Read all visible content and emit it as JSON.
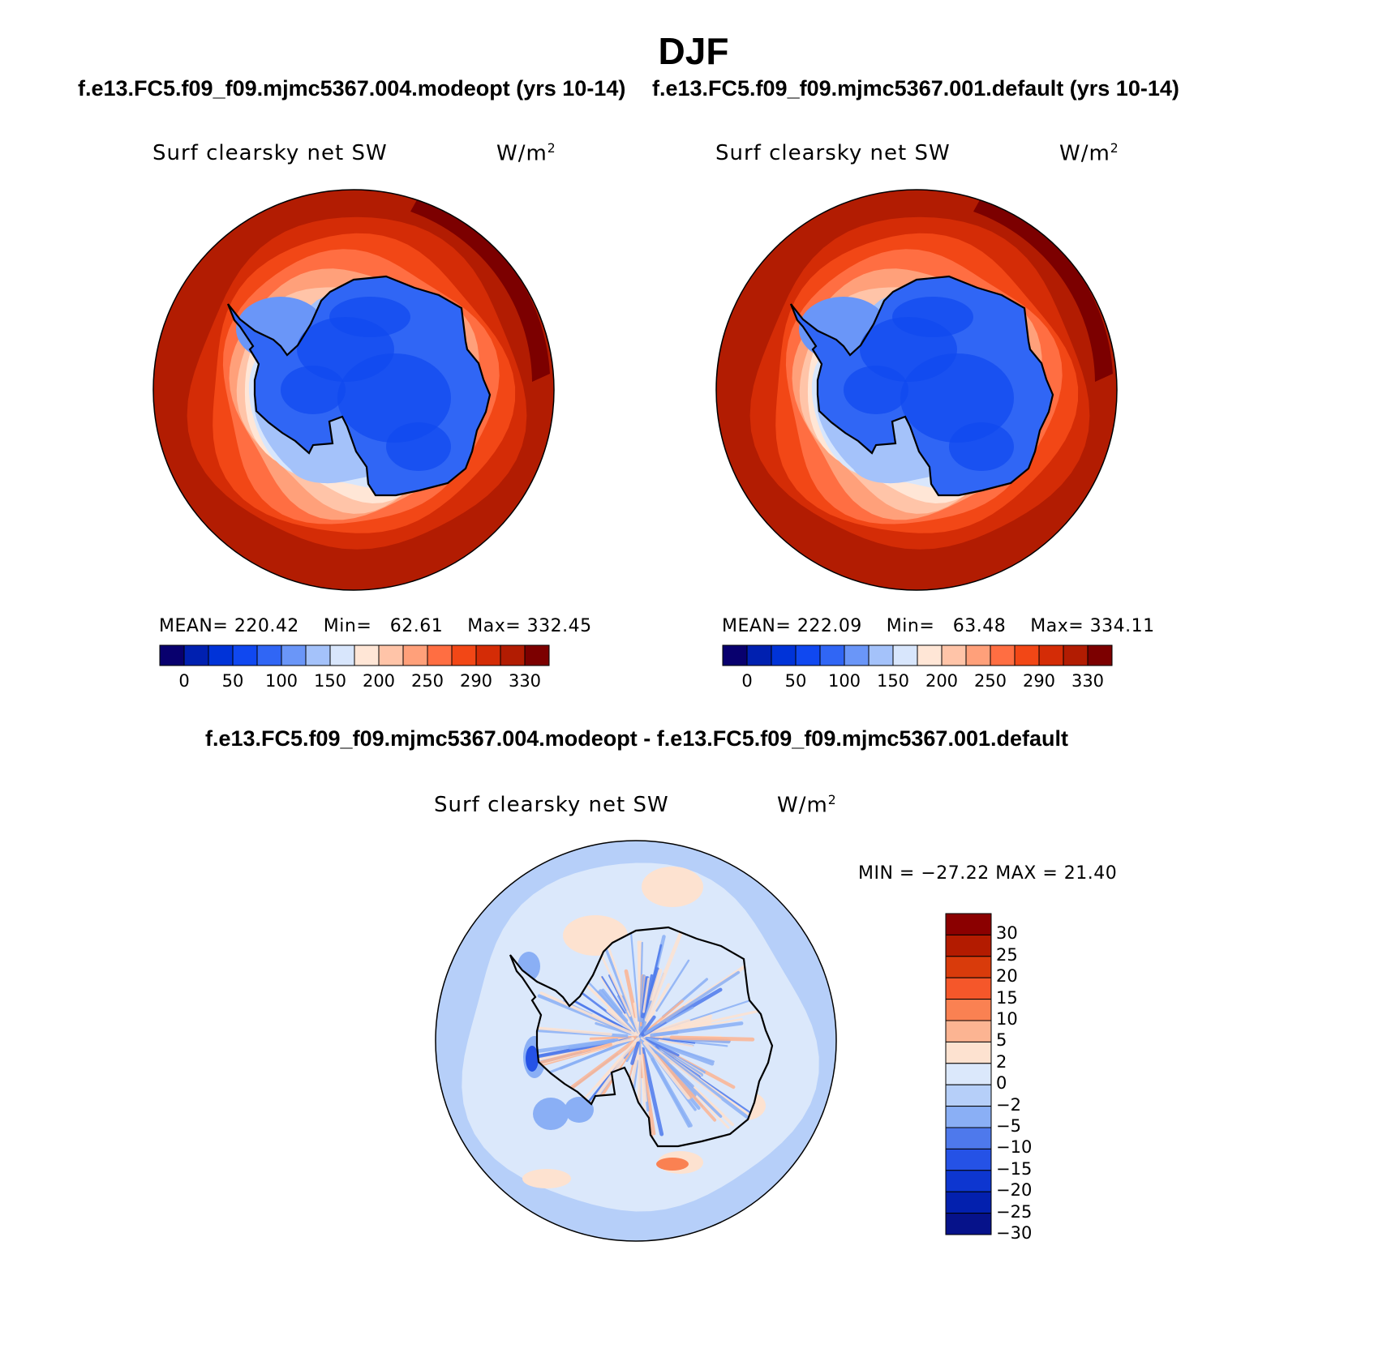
{
  "page": {
    "title": "DJF",
    "subtitle_left": "f.e13.FC5.f09_f09.mjmc5367.004.modeopt (yrs 10-14)",
    "subtitle_right": "f.e13.FC5.f09_f09.mjmc5367.001.default (yrs 10-14)",
    "diff_title": "f.e13.FC5.f09_f09.mjmc5367.004.modeopt - f.e13.FC5.f09_f09.mjmc5367.001.default"
  },
  "chart_data": [
    {
      "type": "heatmap",
      "projection": "south-polar-stereographic",
      "variable": "Surf clearsky net SW",
      "units": "W/m",
      "units_sup": "2",
      "mean_label": "MEAN=",
      "mean": "220.42",
      "min_label": "Min=",
      "min": "62.61",
      "max_label": "Max=",
      "max": "332.45",
      "colorbar_orientation": "horizontal",
      "contour_levels": [
        0,
        25,
        50,
        75,
        100,
        125,
        150,
        175,
        200,
        225,
        250,
        275,
        290,
        310,
        330
      ],
      "tick_labels": [
        "0",
        "50",
        "100",
        "150",
        "200",
        "250",
        "290",
        "330"
      ],
      "colors": [
        "#08006e",
        "#0020b0",
        "#0033d8",
        "#1048f0",
        "#3066f5",
        "#6a96f8",
        "#a4c2fa",
        "#d8e6fc",
        "#ffe6d6",
        "#ffc4a8",
        "#ffa07a",
        "#ff6e42",
        "#f24716",
        "#d42c06",
        "#b21c02",
        "#7c0000"
      ],
      "values_ice": "interior 62-110",
      "values_ocean": "outer ring 290-330"
    },
    {
      "type": "heatmap",
      "projection": "south-polar-stereographic",
      "variable": "Surf clearsky net SW",
      "units": "W/m",
      "units_sup": "2",
      "mean_label": "MEAN=",
      "mean": "222.09",
      "min_label": "Min=",
      "min": "63.48",
      "max_label": "Max=",
      "max": "334.11",
      "colorbar_orientation": "horizontal",
      "contour_levels": [
        0,
        25,
        50,
        75,
        100,
        125,
        150,
        175,
        200,
        225,
        250,
        275,
        290,
        310,
        330
      ],
      "tick_labels": [
        "0",
        "50",
        "100",
        "150",
        "200",
        "250",
        "290",
        "330"
      ],
      "colors": [
        "#08006e",
        "#0020b0",
        "#0033d8",
        "#1048f0",
        "#3066f5",
        "#6a96f8",
        "#a4c2fa",
        "#d8e6fc",
        "#ffe6d6",
        "#ffc4a8",
        "#ffa07a",
        "#ff6e42",
        "#f24716",
        "#d42c06",
        "#b21c02",
        "#7c0000"
      ]
    },
    {
      "type": "heatmap",
      "projection": "south-polar-stereographic",
      "variable": "Surf clearsky net SW",
      "units": "W/m",
      "units_sup": "2",
      "minmax_text": "MIN = −27.22 MAX =  21.40",
      "min": -27.22,
      "max": 21.4,
      "colorbar_orientation": "vertical",
      "tick_labels": [
        "30",
        "25",
        "20",
        "15",
        "10",
        "5",
        "2",
        "0",
        "−2",
        "−5",
        "−10",
        "−15",
        "−20",
        "−25",
        "−30"
      ],
      "colors": [
        "#8b0000",
        "#b31b00",
        "#d93b0b",
        "#f5572a",
        "#fa8152",
        "#fcb492",
        "#fde2d0",
        "#dbe8fb",
        "#b6cff9",
        "#8aaff5",
        "#4e79ec",
        "#2552e6",
        "#0d36d0",
        "#0320ae",
        "#06128a"
      ]
    }
  ]
}
